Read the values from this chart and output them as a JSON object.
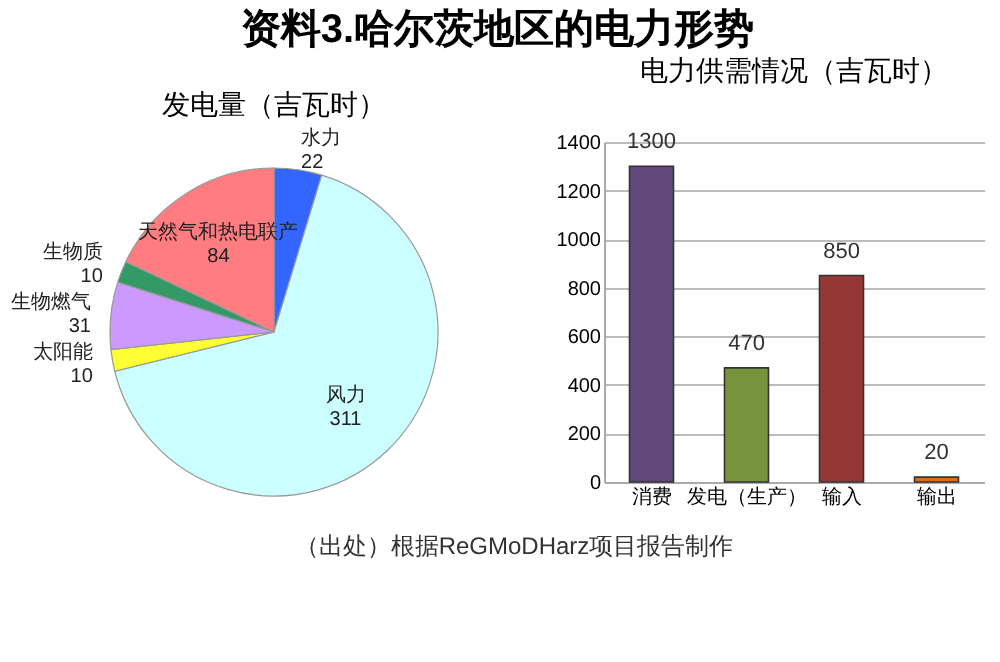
{
  "chart_data": [
    {
      "type": "pie",
      "title": "发电量（吉瓦时）",
      "categories": [
        "水力",
        "风力",
        "太阳能",
        "生物燃气",
        "生物质",
        "天然气和热电联产"
      ],
      "values": [
        22,
        311,
        10,
        31,
        10,
        84
      ],
      "colors": [
        "#3366ff",
        "#ccffff",
        "#ffff33",
        "#cc99ff",
        "#339966",
        "#ff7c80"
      ],
      "data_labels": true,
      "legend": false,
      "annotations": [
        "资料3.哈尔茨地区的电力形势",
        "（出处）根据ReGMoDHarz项目报告制作"
      ]
    },
    {
      "type": "bar",
      "title": "电力供需情况（吉瓦时）",
      "categories": [
        "消费",
        "发电（生产）",
        "输入",
        "输出"
      ],
      "values": [
        1300,
        470,
        850,
        20
      ],
      "colors": [
        "#60497a",
        "#77933c",
        "#953735",
        "#e46c0a"
      ],
      "ylim": [
        0,
        1400
      ],
      "yticks": [
        0,
        200,
        400,
        600,
        800,
        1000,
        1200,
        1400
      ],
      "grid": "y",
      "data_labels": true,
      "legend": false
    }
  ]
}
